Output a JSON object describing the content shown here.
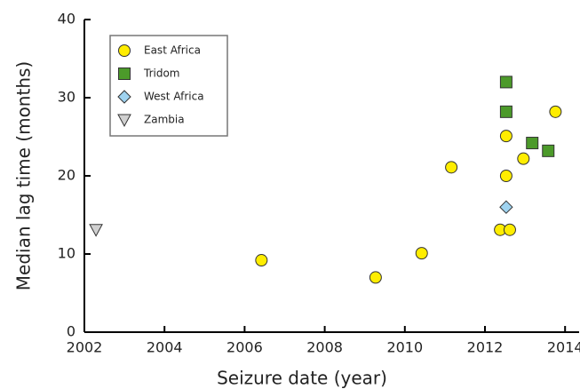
{
  "chart_data": {
    "type": "scatter",
    "xlabel": "Seizure date (year)",
    "ylabel": "Median lag time (months)",
    "xlim": [
      2002,
      2014.35
    ],
    "ylim": [
      0,
      40
    ],
    "xticks": [
      2002,
      2004,
      2006,
      2008,
      2010,
      2012,
      2014
    ],
    "yticks": [
      0,
      10,
      20,
      30,
      40
    ],
    "legend": "upper left",
    "series": [
      {
        "name": "East Africa",
        "color": "#ffed00",
        "marker": "circle",
        "x": [
          2006.42,
          2009.27,
          2010.42,
          2011.16,
          2012.38,
          2012.62,
          2012.53,
          2012.53,
          2012.96,
          2013.76
        ],
        "values": [
          9.2,
          7,
          10.1,
          21.1,
          13.1,
          13.1,
          20,
          25.1,
          22.2,
          28.2
        ]
      },
      {
        "name": "Tridom",
        "color": "#4c9a2a",
        "marker": "square",
        "x": [
          2012.53,
          2012.53,
          2013.18,
          2013.58
        ],
        "values": [
          32,
          28.2,
          24.2,
          23.2
        ]
      },
      {
        "name": "West Africa",
        "color": "#9fd3f0",
        "marker": "diamond",
        "x": [
          2012.53
        ],
        "values": [
          16
        ]
      },
      {
        "name": "Zambia",
        "color": "#d0d0d0",
        "marker": "triangle-down",
        "x": [
          2002.29
        ],
        "values": [
          13.1
        ]
      }
    ]
  }
}
